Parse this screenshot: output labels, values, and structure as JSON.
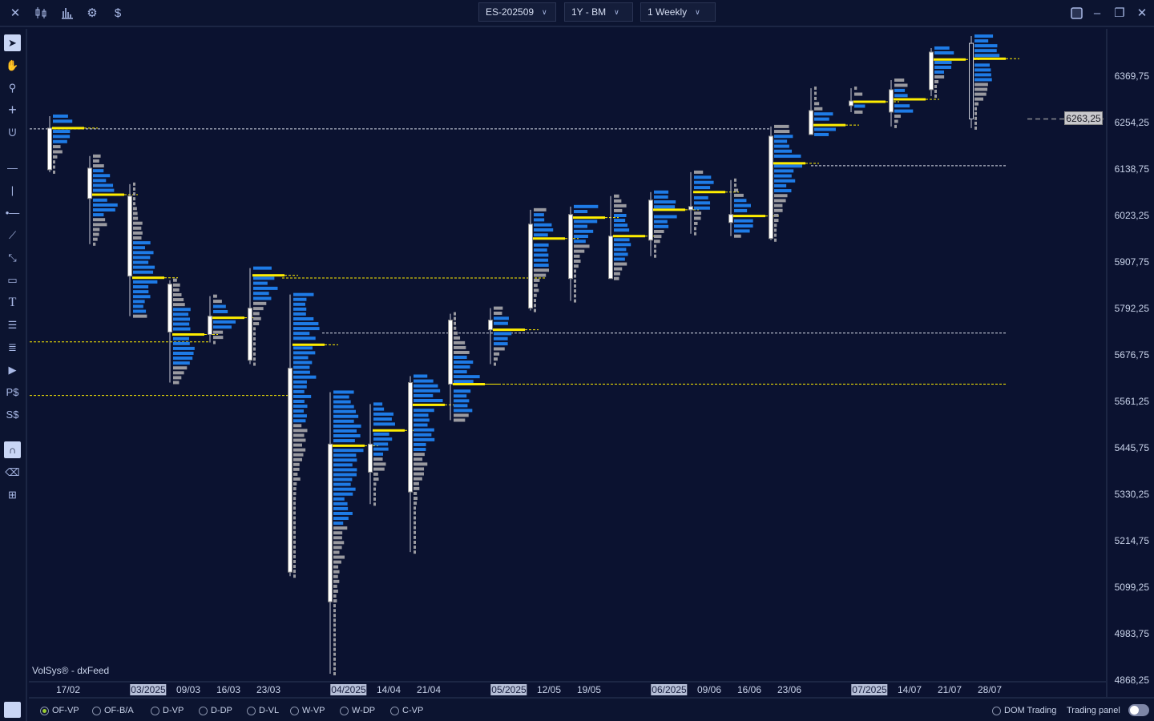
{
  "topbar": {
    "icons": [
      "close-icon",
      "candles-icon",
      "bar-chart-icon",
      "gear-icon",
      "dollar-icon"
    ],
    "symbol": "ES-202509",
    "range": "1Y - BM",
    "timeframe": "1 Weekly",
    "window_icons": [
      "layout-icon",
      "minimize-icon",
      "restore-icon",
      "close-icon"
    ]
  },
  "left_tools": [
    "pointer",
    "hand",
    "zoom",
    "crosshair",
    "magnet-cursor",
    "horizontal-line",
    "vertical-line",
    "ray",
    "trend-line",
    "polyline",
    "rectangle",
    "text",
    "fib-levels",
    "parallel-lines",
    "volume-profile",
    "price-dollar",
    "sum-dollar",
    "magnet",
    "eraser",
    "add-object"
  ],
  "chart": {
    "watermark": "VolSys® - dxFeed",
    "current_price": "6263,25",
    "colors": {
      "background": "#0b1230",
      "poc": "#ffee00",
      "value_area": "#1e7be6",
      "volume": "#9a9aa0",
      "candle": "#ffffff"
    },
    "price_ticks": [
      "6369,75",
      "6254,25",
      "6138,75",
      "6023,25",
      "5907,75",
      "5792,25",
      "5676,75",
      "5561,25",
      "5445,75",
      "5330,25",
      "5214,75",
      "5099,25",
      "4983,75",
      "4868,25"
    ],
    "date_ticks": [
      {
        "label": "17/02",
        "week": 0,
        "month": false
      },
      {
        "label": "03/2025",
        "week": 2,
        "month": true
      },
      {
        "label": "09/03",
        "week": 3,
        "month": false
      },
      {
        "label": "16/03",
        "week": 4,
        "month": false
      },
      {
        "label": "23/03",
        "week": 5,
        "month": false
      },
      {
        "label": "04/2025",
        "week": 7,
        "month": true
      },
      {
        "label": "14/04",
        "week": 8,
        "month": false
      },
      {
        "label": "21/04",
        "week": 9,
        "month": false
      },
      {
        "label": "05/2025",
        "week": 11,
        "month": true
      },
      {
        "label": "12/05",
        "week": 12,
        "month": false
      },
      {
        "label": "19/05",
        "week": 13,
        "month": false
      },
      {
        "label": "06/2025",
        "week": 15,
        "month": true
      },
      {
        "label": "09/06",
        "week": 16,
        "month": false
      },
      {
        "label": "16/06",
        "week": 17,
        "month": false
      },
      {
        "label": "23/06",
        "week": 18,
        "month": false
      },
      {
        "label": "07/2025",
        "week": 20,
        "month": true
      },
      {
        "label": "14/07",
        "week": 21,
        "month": false
      },
      {
        "label": "21/07",
        "week": 22,
        "month": false
      },
      {
        "label": "28/07",
        "week": 23,
        "month": false
      }
    ]
  },
  "chart_data": {
    "type": "candlestick-volume-profile",
    "ylim": [
      4868.25,
      6369.75
    ],
    "candles": [
      {
        "o": 6240.5,
        "h": 6270.25,
        "l": 6131,
        "c": 6137,
        "poc": 6240.5
      },
      {
        "o": 6141,
        "h": 6171,
        "l": 5952,
        "c": 6065.5,
        "poc": 6075
      },
      {
        "o": 6071.5,
        "h": 6101.25,
        "l": 5773,
        "c": 5872.5,
        "poc": 5868.5
      },
      {
        "o": 5852.75,
        "h": 5862.5,
        "l": 5608,
        "c": 5733.5,
        "poc": 5727.5
      },
      {
        "o": 5727.5,
        "h": 5822.75,
        "l": 5707.5,
        "c": 5773,
        "poc": 5769
      },
      {
        "o": 5793,
        "h": 5892.5,
        "l": 5653.75,
        "c": 5663.5,
        "poc": 5874.5
      },
      {
        "o": 5643.75,
        "h": 5826.75,
        "l": 5126.75,
        "c": 5136.75,
        "poc": 5702
      },
      {
        "o": 5063,
        "h": 5584.25,
        "l": 4884.25,
        "c": 5455,
        "poc": 5451
      },
      {
        "o": 5385.25,
        "h": 5554.5,
        "l": 5305.75,
        "c": 5455,
        "poc": 5489
      },
      {
        "o": 5336,
        "h": 5624,
        "l": 5186.5,
        "c": 5608,
        "poc": 5552.5
      },
      {
        "o": 5604,
        "h": 5779,
        "l": 5514.5,
        "c": 5763.25,
        "poc": 5604
      },
      {
        "o": 5739.25,
        "h": 5793,
        "l": 5653.75,
        "c": 5763.25,
        "poc": 5739.25
      },
      {
        "o": 5793,
        "h": 6037.5,
        "l": 5787,
        "c": 6001.75,
        "poc": 5966
      },
      {
        "o": 5866.5,
        "h": 6045.5,
        "l": 5811,
        "c": 6025.75,
        "poc": 6018
      },
      {
        "o": 5866.5,
        "h": 6071.5,
        "l": 5866.5,
        "c": 5972,
        "poc": 5972
      },
      {
        "o": 5962,
        "h": 6081.5,
        "l": 5922.25,
        "c": 6061.5,
        "poc": 6037.5
      },
      {
        "o": 6037.5,
        "h": 6131,
        "l": 5978,
        "c": 6045.5,
        "poc": 6081.5
      },
      {
        "o": 6005.75,
        "h": 6111.25,
        "l": 5972,
        "c": 6025.75,
        "poc": 6022
      },
      {
        "o": 5966,
        "h": 6244.5,
        "l": 5962,
        "c": 6220.5,
        "poc": 6153
      },
      {
        "o": 6224.5,
        "h": 6339.75,
        "l": 6224.5,
        "c": 6284.25,
        "poc": 6248
      },
      {
        "o": 6296.25,
        "h": 6339.75,
        "l": 6280.25,
        "c": 6308,
        "poc": 6306
      },
      {
        "o": 6280.25,
        "h": 6359.75,
        "l": 6244.5,
        "c": 6336,
        "poc": 6312
      },
      {
        "o": 6336,
        "h": 6439.5,
        "l": 6320,
        "c": 6429.5,
        "poc": 6411
      },
      {
        "o": 6451.25,
        "h": 6469.25,
        "l": 6240.5,
        "c": 6263.25,
        "poc": 6413
      }
    ],
    "levels": [
      {
        "price": 6238.5,
        "color": "white",
        "from": -1,
        "to": 18
      },
      {
        "price": 6147,
        "color": "white",
        "from": 19,
        "to": 23.9
      },
      {
        "price": 5868,
        "color": "yellow",
        "from": 5.8,
        "to": 12.4
      },
      {
        "price": 5731,
        "color": "white",
        "from": 6.8,
        "to": 23.9
      },
      {
        "price": 5709,
        "color": "yellow",
        "from": -1,
        "to": 4
      },
      {
        "price": 5604,
        "color": "yellow",
        "from": 10.8,
        "to": 23.9
      },
      {
        "price": 5576,
        "color": "yellow",
        "from": -1,
        "to": 6.4
      },
      {
        "price": 6263.25,
        "color": "gray",
        "from": 24.4,
        "to": 26.3
      }
    ]
  },
  "bottombar": {
    "modes": [
      {
        "label": "OF-VP",
        "selected": true
      },
      {
        "label": "OF-B/A",
        "selected": false
      },
      {
        "label": "D-VP",
        "selected": false
      },
      {
        "label": "D-DP",
        "selected": false
      },
      {
        "label": "D-VL",
        "selected": false
      },
      {
        "label": "W-VP",
        "selected": false
      },
      {
        "label": "W-DP",
        "selected": false
      },
      {
        "label": "C-VP",
        "selected": false
      }
    ],
    "dom_trading": "DOM Trading",
    "trading_panel": "Trading panel",
    "trading_panel_on": false
  }
}
